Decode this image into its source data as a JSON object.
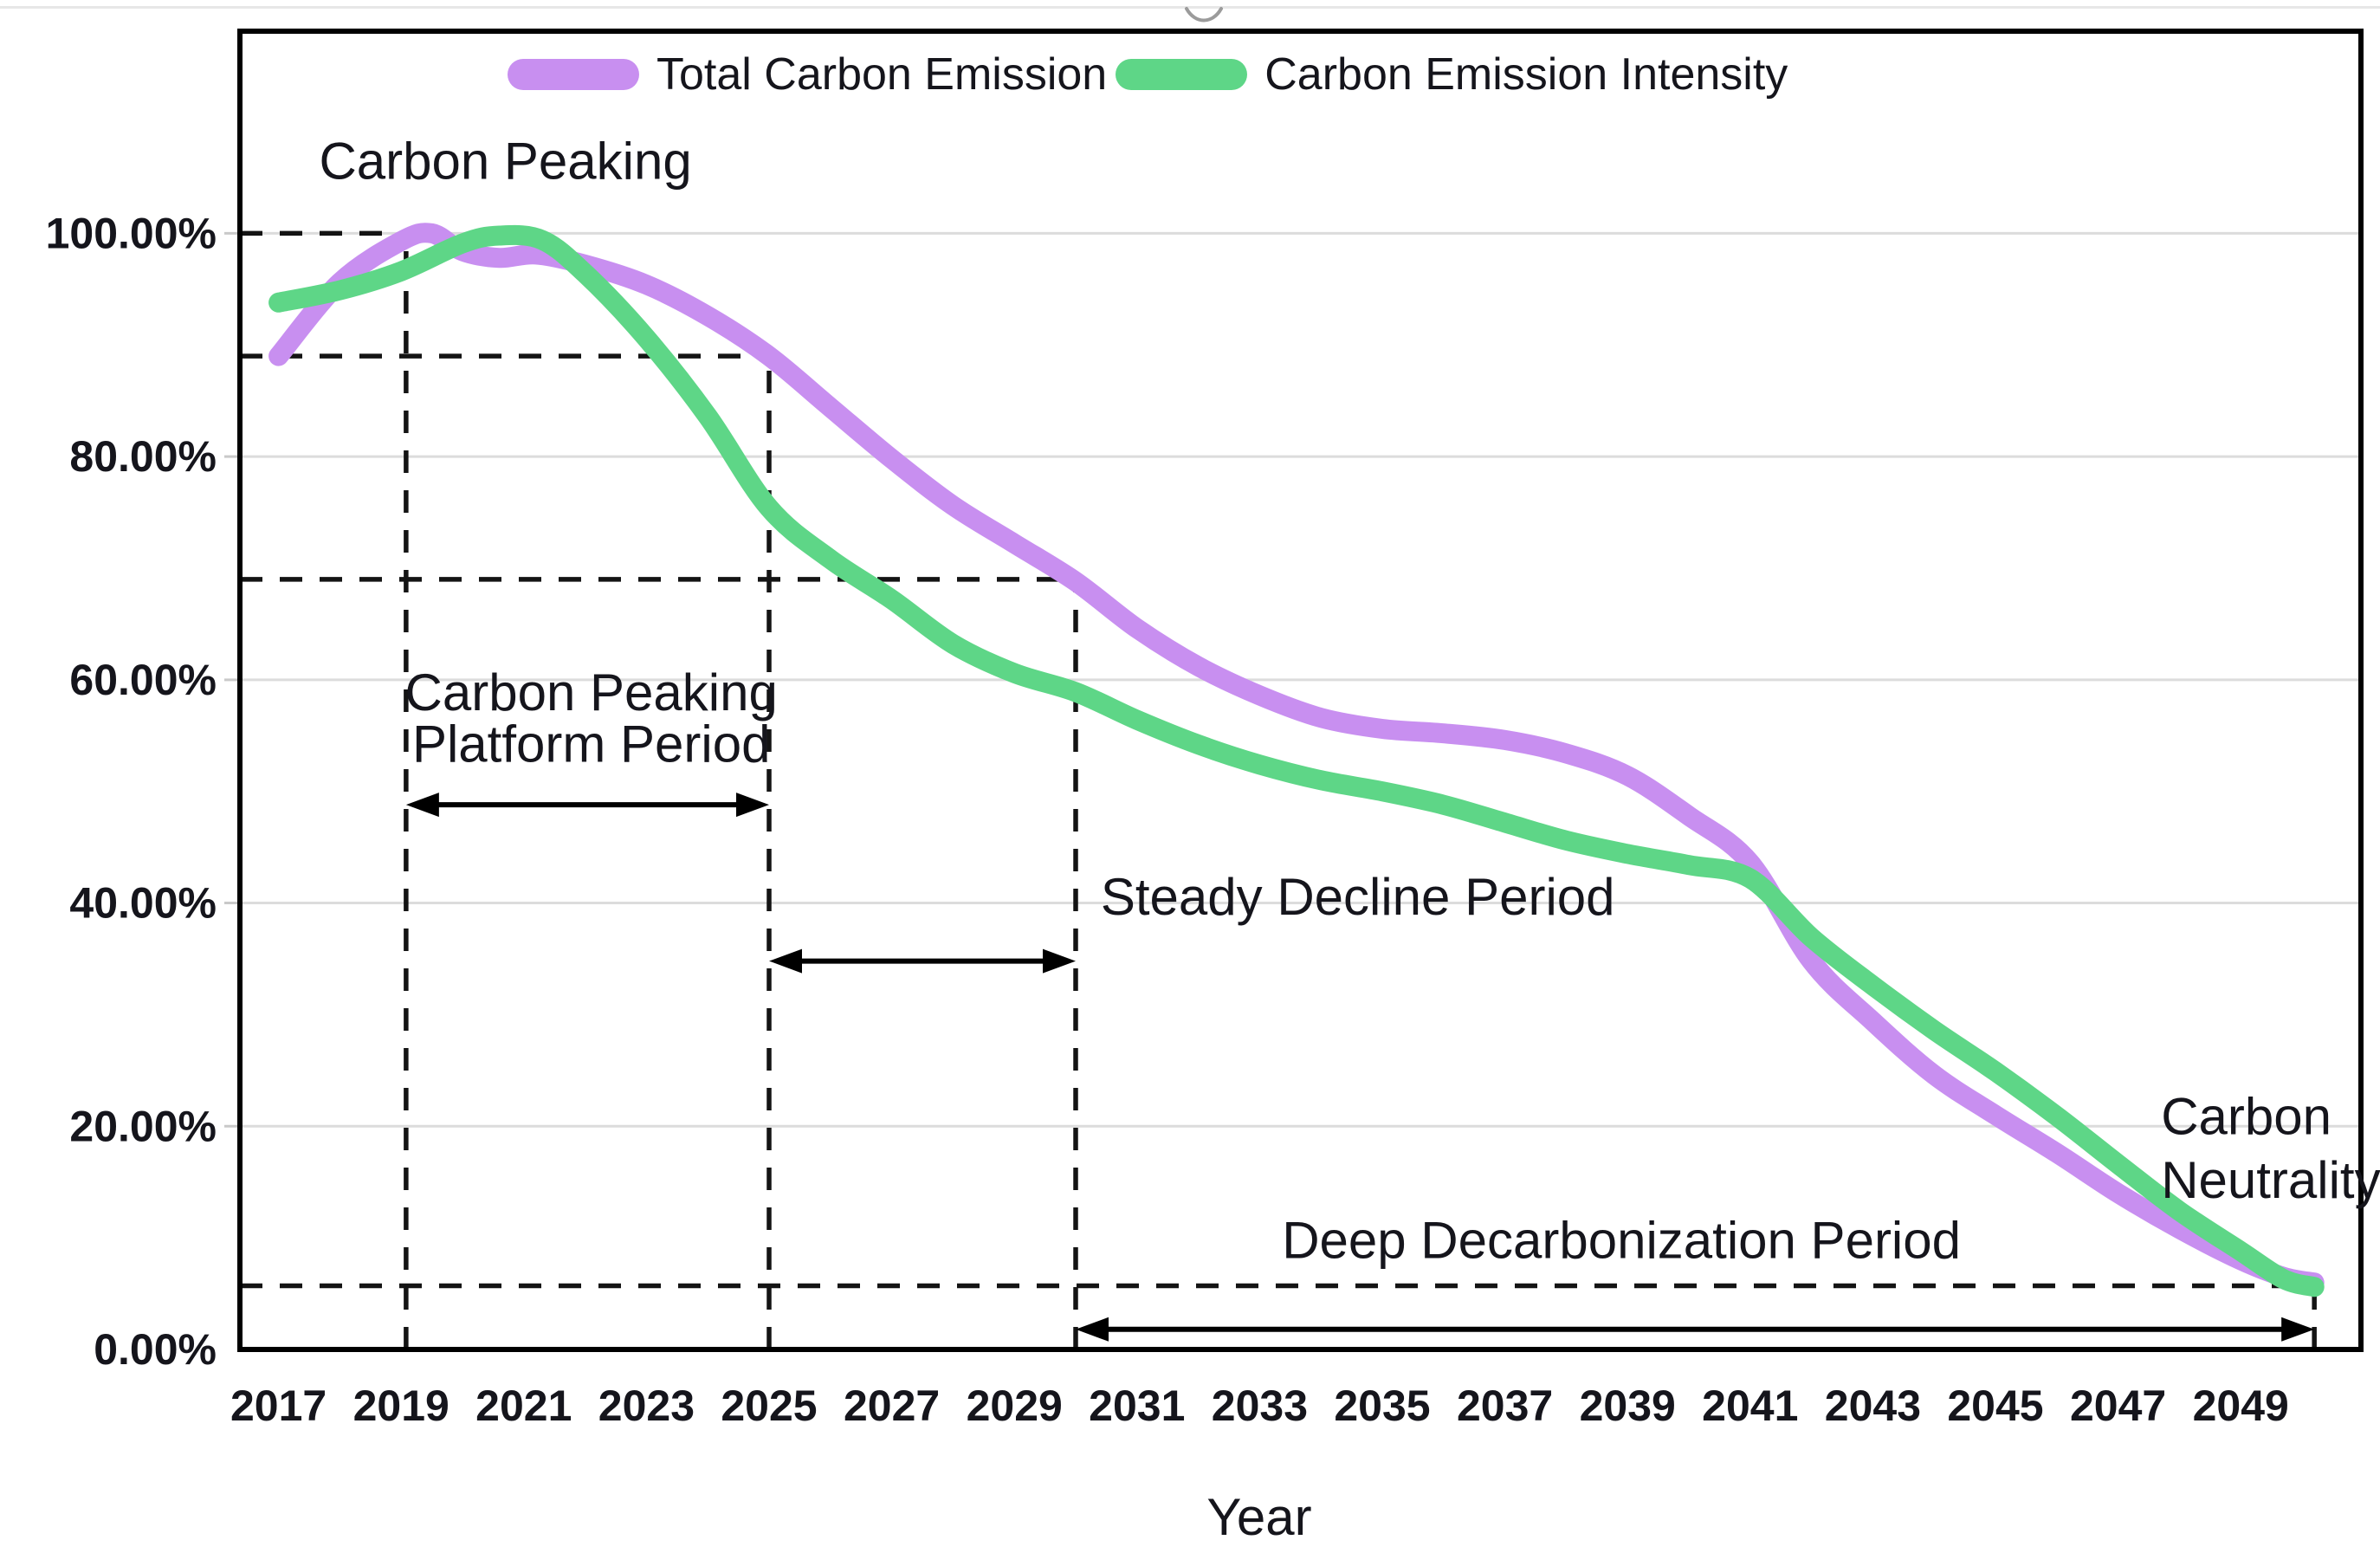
{
  "window": {
    "chevron_icon": "chevron-down-icon",
    "top_divider_color": "#e7e7e7"
  },
  "legend": {
    "items": [
      {
        "label": "Total Carbon Emission",
        "color": "#c88ff0"
      },
      {
        "label": "Carbon Emission Intensity",
        "color": "#5ed687"
      }
    ]
  },
  "chart_data": {
    "type": "line",
    "title": "",
    "xlabel": "Year",
    "ylabel": "",
    "xlim": [
      2016.37,
      2050.96
    ],
    "ylim": [
      0,
      118
    ],
    "grid": "horizontal-only",
    "legend_position": "top-inside",
    "x_ticks": [
      "2017",
      "2019",
      "2021",
      "2023",
      "2025",
      "2027",
      "2029",
      "2031",
      "2033",
      "2035",
      "2037",
      "2039",
      "2041",
      "2043",
      "2045",
      "2047",
      "2049"
    ],
    "y_ticks": [
      {
        "label": "0.00%",
        "value": 0
      },
      {
        "label": "20.00%",
        "value": 20
      },
      {
        "label": "40.00%",
        "value": 40
      },
      {
        "label": "60.00%",
        "value": 60
      },
      {
        "label": "80.00%",
        "value": 80
      },
      {
        "label": "100.00%",
        "value": 100
      }
    ],
    "series": [
      {
        "name": "Total Carbon Emission",
        "color": "#c88ff0",
        "points": [
          [
            2017,
            89
          ],
          [
            2018,
            95.6
          ],
          [
            2019,
            99.3
          ],
          [
            2019.5,
            100
          ],
          [
            2020,
            98.4
          ],
          [
            2020.6,
            97.8
          ],
          [
            2021.2,
            98.1
          ],
          [
            2022,
            97.2
          ],
          [
            2023,
            95.4
          ],
          [
            2024,
            92.6
          ],
          [
            2025,
            89
          ],
          [
            2026,
            84.4
          ],
          [
            2027,
            79.8
          ],
          [
            2028,
            75.6
          ],
          [
            2029,
            72.2
          ],
          [
            2030,
            68.8
          ],
          [
            2031,
            64.6
          ],
          [
            2032,
            61.2
          ],
          [
            2033,
            58.6
          ],
          [
            2034,
            56.6
          ],
          [
            2035,
            55.6
          ],
          [
            2036,
            55.2
          ],
          [
            2037,
            54.6
          ],
          [
            2038,
            53.4
          ],
          [
            2039,
            51.4
          ],
          [
            2040,
            47.8
          ],
          [
            2041,
            43.6
          ],
          [
            2042,
            34.8
          ],
          [
            2043,
            29.4
          ],
          [
            2044,
            24.6
          ],
          [
            2045,
            21
          ],
          [
            2046,
            17.6
          ],
          [
            2047,
            14
          ],
          [
            2048,
            10.8
          ],
          [
            2049,
            8
          ],
          [
            2049.7,
            6.5
          ],
          [
            2050.2,
            6
          ]
        ]
      },
      {
        "name": "Carbon Emission Intensity",
        "color": "#5ed687",
        "points": [
          [
            2017,
            93.8
          ],
          [
            2018,
            94.9
          ],
          [
            2019,
            96.6
          ],
          [
            2020,
            99.1
          ],
          [
            2020.6,
            99.8
          ],
          [
            2021.3,
            99.4
          ],
          [
            2022,
            96.4
          ],
          [
            2023,
            90.6
          ],
          [
            2024,
            83.6
          ],
          [
            2025,
            75.4
          ],
          [
            2026,
            70.8
          ],
          [
            2027,
            67.2
          ],
          [
            2028,
            63.2
          ],
          [
            2029,
            60.6
          ],
          [
            2030,
            58.9
          ],
          [
            2031,
            56.4
          ],
          [
            2032,
            54.2
          ],
          [
            2033,
            52.4
          ],
          [
            2034,
            51
          ],
          [
            2035,
            50
          ],
          [
            2036,
            48.8
          ],
          [
            2037,
            47.2
          ],
          [
            2038,
            45.6
          ],
          [
            2039,
            44.4
          ],
          [
            2040,
            43.4
          ],
          [
            2041,
            42.2
          ],
          [
            2042,
            36.9
          ],
          [
            2043,
            32.6
          ],
          [
            2044,
            28.6
          ],
          [
            2045,
            24.9
          ],
          [
            2046,
            20.9
          ],
          [
            2047,
            16.6
          ],
          [
            2048,
            12.4
          ],
          [
            2049,
            8.8
          ],
          [
            2049.7,
            6.3
          ],
          [
            2050.2,
            5.6
          ]
        ]
      }
    ],
    "reference_lines": [
      {
        "orient": "h",
        "value": 100,
        "from": 2016.37,
        "to": 2019.08
      },
      {
        "orient": "h",
        "value": 89,
        "from": 2016.37,
        "to": 2025
      },
      {
        "orient": "h",
        "value": 69,
        "from": 2016.37,
        "to": 2030
      },
      {
        "orient": "h",
        "value": 5.7,
        "from": 2016.37,
        "to": 2050.2
      },
      {
        "orient": "v",
        "value": 2019.08,
        "from": 0,
        "to": 100
      },
      {
        "orient": "v",
        "value": 2025,
        "from": 0,
        "to": 89
      },
      {
        "orient": "v",
        "value": 2030,
        "from": 0,
        "to": 69
      },
      {
        "orient": "v",
        "value": 2050.2,
        "from": 0,
        "to": 5.7
      }
    ],
    "arrows": [
      {
        "name": "carbon-peaking-platform-period-span",
        "x1": 2019.08,
        "x2": 2025,
        "y": 48.8
      },
      {
        "name": "steady-decline-period-span",
        "x1": 2025,
        "x2": 2030,
        "y": 34.8
      },
      {
        "name": "deep-decarbonization-period-span",
        "x1": 2030,
        "x2": 2050.2,
        "y": 1.8
      }
    ],
    "annotations": {
      "carbon_peaking": {
        "text": "Carbon Peaking",
        "x": 2020.7,
        "y": 106.5,
        "align": "middle"
      },
      "platform_line1": {
        "text": "Carbon Peaking",
        "x": 2022.1,
        "y": 58.9,
        "align": "middle"
      },
      "platform_line2": {
        "text": "Platform Period",
        "x": 2022.1,
        "y": 54.3,
        "align": "middle"
      },
      "steady": {
        "text": "Steady Decline Period",
        "x": 2034.6,
        "y": 40.6,
        "align": "middle"
      },
      "deep": {
        "text": "Deep Decarbonization Period",
        "x": 2038.9,
        "y": 9.8,
        "align": "middle"
      },
      "neutrality_line1": {
        "text": "Carbon",
        "x": 2047.7,
        "y": 20.9,
        "align": "start"
      },
      "neutrality_line2": {
        "text": "Neutrality",
        "x": 2047.7,
        "y": 15.2,
        "align": "start"
      }
    }
  }
}
